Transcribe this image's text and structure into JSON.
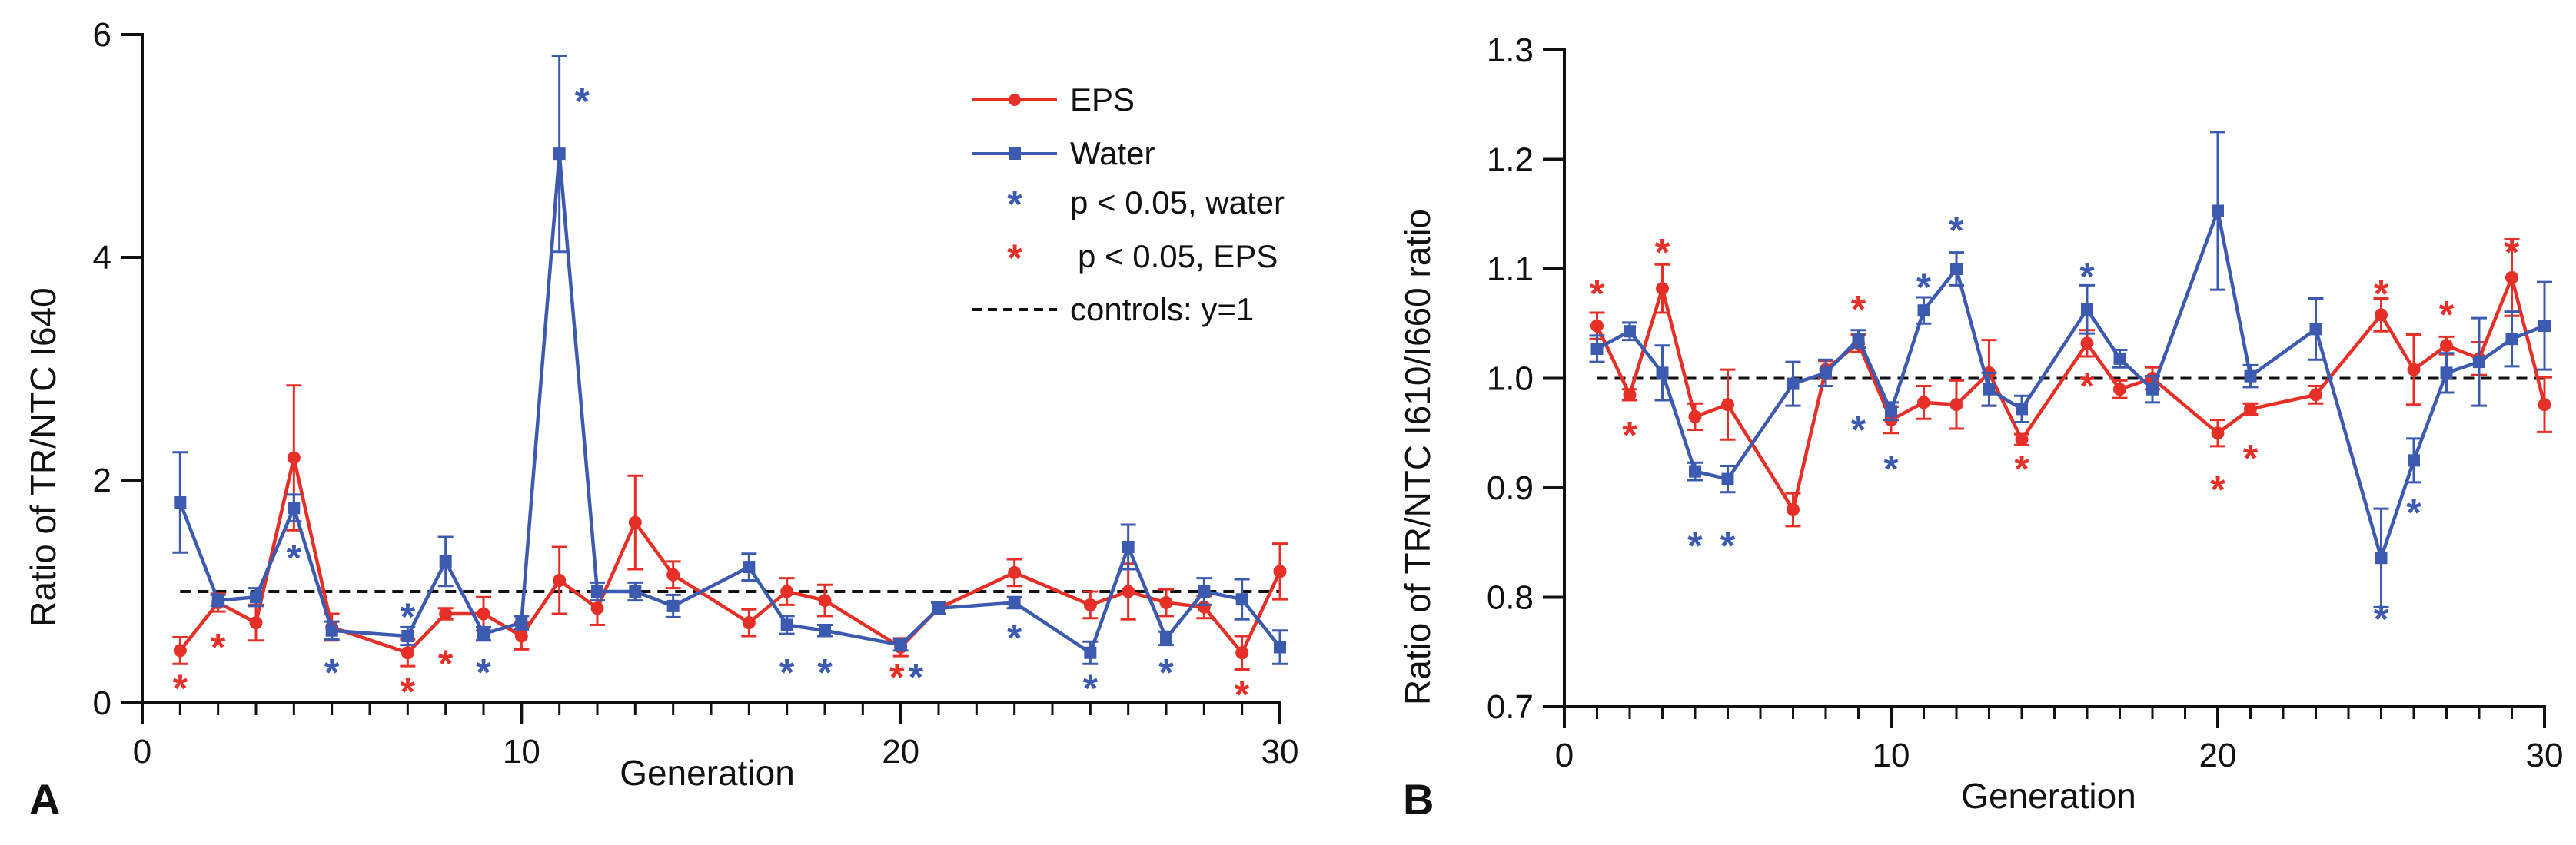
{
  "colors": {
    "eps": "#e63027",
    "water": "#3b5ab0",
    "control": "#111111",
    "axis": "#111111"
  },
  "chart_data": [
    {
      "panel": "A",
      "type": "line",
      "title": "",
      "xlabel": "Generation",
      "ylabel": "Ratio of TR/NTC I640",
      "xlim": [
        0,
        30
      ],
      "ylim": [
        0,
        6
      ],
      "xticks": [
        0,
        10,
        20,
        30
      ],
      "xticks_minor": [
        1,
        2,
        3,
        4,
        5,
        6,
        7,
        8,
        9,
        11,
        12,
        13,
        14,
        15,
        16,
        17,
        18,
        19,
        21,
        22,
        23,
        24,
        25,
        26,
        27,
        28,
        29
      ],
      "yticks": [
        0,
        2,
        4,
        6
      ],
      "yticks_minor": [],
      "control": 1,
      "legend": {
        "position": "top-right",
        "eps": "EPS",
        "water": "Water",
        "sig_water": "p < 0.05, water",
        "sig_eps": "p < 0.05, EPS",
        "control": "controls: y=1"
      },
      "series": [
        {
          "name": "EPS",
          "color": "#e63027",
          "marker": "circle",
          "points": [
            {
              "x": 1,
              "y": 0.47,
              "err": 0.12
            },
            {
              "x": 2,
              "y": 0.9,
              "err": 0.08
            },
            {
              "x": 3,
              "y": 0.72,
              "err": 0.16
            },
            {
              "x": 4,
              "y": 2.2,
              "err": 0.65
            },
            {
              "x": 5,
              "y": 0.68,
              "err": 0.12
            },
            {
              "x": 7,
              "y": 0.45,
              "err": 0.12
            },
            {
              "x": 8,
              "y": 0.8,
              "err": 0.05
            },
            {
              "x": 9,
              "y": 0.8,
              "err": 0.15
            },
            {
              "x": 10,
              "y": 0.6,
              "err": 0.12
            },
            {
              "x": 11,
              "y": 1.1,
              "err": 0.3
            },
            {
              "x": 12,
              "y": 0.85,
              "err": 0.15
            },
            {
              "x": 13,
              "y": 1.62,
              "err": 0.42
            },
            {
              "x": 14,
              "y": 1.15,
              "err": 0.12
            },
            {
              "x": 16,
              "y": 0.72,
              "err": 0.12
            },
            {
              "x": 17,
              "y": 1.0,
              "err": 0.12
            },
            {
              "x": 18,
              "y": 0.92,
              "err": 0.14
            },
            {
              "x": 20,
              "y": 0.5,
              "err": 0.08
            },
            {
              "x": 21,
              "y": 0.85,
              "err": 0.05
            },
            {
              "x": 23,
              "y": 1.17,
              "err": 0.12
            },
            {
              "x": 25,
              "y": 0.88,
              "err": 0.12
            },
            {
              "x": 26,
              "y": 1.0,
              "err": 0.25
            },
            {
              "x": 27,
              "y": 0.9,
              "err": 0.12
            },
            {
              "x": 28,
              "y": 0.86,
              "err": 0.1
            },
            {
              "x": 29,
              "y": 0.45,
              "err": 0.15
            },
            {
              "x": 30,
              "y": 1.18,
              "err": 0.25
            }
          ]
        },
        {
          "name": "Water",
          "color": "#3b5ab0",
          "marker": "square",
          "points": [
            {
              "x": 1,
              "y": 1.8,
              "err": 0.45
            },
            {
              "x": 2,
              "y": 0.92,
              "err": 0.05
            },
            {
              "x": 3,
              "y": 0.95,
              "err": 0.08
            },
            {
              "x": 4,
              "y": 1.75,
              "err": 0.12
            },
            {
              "x": 5,
              "y": 0.65,
              "err": 0.08
            },
            {
              "x": 7,
              "y": 0.6,
              "err": 0.08
            },
            {
              "x": 8,
              "y": 1.27,
              "err": 0.22
            },
            {
              "x": 9,
              "y": 0.62,
              "err": 0.06
            },
            {
              "x": 10,
              "y": 0.72,
              "err": 0.06
            },
            {
              "x": 11,
              "y": 4.93,
              "err": 0.88
            },
            {
              "x": 12,
              "y": 1.0,
              "err": 0.08
            },
            {
              "x": 13,
              "y": 1.0,
              "err": 0.08
            },
            {
              "x": 14,
              "y": 0.87,
              "err": 0.1
            },
            {
              "x": 16,
              "y": 1.22,
              "err": 0.12
            },
            {
              "x": 17,
              "y": 0.7,
              "err": 0.08
            },
            {
              "x": 18,
              "y": 0.65,
              "err": 0.05
            },
            {
              "x": 20,
              "y": 0.52,
              "err": 0.05
            },
            {
              "x": 21,
              "y": 0.85,
              "err": 0.05
            },
            {
              "x": 23,
              "y": 0.9,
              "err": 0.05
            },
            {
              "x": 25,
              "y": 0.45,
              "err": 0.1
            },
            {
              "x": 26,
              "y": 1.4,
              "err": 0.2
            },
            {
              "x": 27,
              "y": 0.58,
              "err": 0.06
            },
            {
              "x": 28,
              "y": 1.0,
              "err": 0.12
            },
            {
              "x": 29,
              "y": 0.93,
              "err": 0.18
            },
            {
              "x": 30,
              "y": 0.5,
              "err": 0.15
            }
          ]
        }
      ],
      "significance": [
        {
          "x": 1,
          "y": 0.18,
          "group": "EPS"
        },
        {
          "x": 2,
          "y": 0.55,
          "group": "EPS"
        },
        {
          "x": 4,
          "y": 1.35,
          "group": "Water"
        },
        {
          "x": 5,
          "y": 0.32,
          "group": "Water"
        },
        {
          "x": 7,
          "y": 0.82,
          "group": "Water"
        },
        {
          "x": 7,
          "y": 0.15,
          "group": "EPS"
        },
        {
          "x": 8,
          "y": 0.4,
          "group": "EPS"
        },
        {
          "x": 9,
          "y": 0.32,
          "group": "Water"
        },
        {
          "x": 11.6,
          "y": 5.45,
          "group": "Water"
        },
        {
          "x": 17,
          "y": 0.32,
          "group": "Water"
        },
        {
          "x": 18,
          "y": 0.32,
          "group": "Water"
        },
        {
          "x": 19.9,
          "y": 0.28,
          "group": "EPS"
        },
        {
          "x": 20.4,
          "y": 0.28,
          "group": "Water"
        },
        {
          "x": 23,
          "y": 0.63,
          "group": "Water"
        },
        {
          "x": 25,
          "y": 0.18,
          "group": "Water"
        },
        {
          "x": 27,
          "y": 0.32,
          "group": "Water"
        },
        {
          "x": 29,
          "y": 0.12,
          "group": "EPS"
        }
      ]
    },
    {
      "panel": "B",
      "type": "line",
      "title": "",
      "xlabel": "Generation",
      "ylabel": "Ratio of TR/NTC I610/I660 ratio",
      "xlim": [
        0,
        30
      ],
      "ylim": [
        0.7,
        1.3
      ],
      "xticks": [
        0,
        10,
        20,
        30
      ],
      "xticks_minor": [
        1,
        2,
        3,
        4,
        5,
        6,
        7,
        8,
        9,
        11,
        12,
        13,
        14,
        15,
        16,
        17,
        18,
        19,
        21,
        22,
        23,
        24,
        25,
        26,
        27,
        28,
        29
      ],
      "yticks": [
        0.7,
        0.8,
        0.9,
        1.0,
        1.1,
        1.2,
        1.3
      ],
      "ytick_labels": [
        "0.7",
        "0.8",
        "0.9",
        "1.0",
        "1.1",
        "1.2",
        "1.3"
      ],
      "yticks_minor": [],
      "control": 1,
      "series": [
        {
          "name": "EPS",
          "color": "#e63027",
          "marker": "circle",
          "points": [
            {
              "x": 1,
              "y": 1.048,
              "err": 0.012
            },
            {
              "x": 2,
              "y": 0.985,
              "err": 0.005
            },
            {
              "x": 3,
              "y": 1.082,
              "err": 0.022
            },
            {
              "x": 4,
              "y": 0.965,
              "err": 0.012
            },
            {
              "x": 5,
              "y": 0.976,
              "err": 0.032
            },
            {
              "x": 7,
              "y": 0.88,
              "err": 0.015
            },
            {
              "x": 8,
              "y": 1.008,
              "err": 0.008
            },
            {
              "x": 9,
              "y": 1.032,
              "err": 0.008
            },
            {
              "x": 10,
              "y": 0.962,
              "err": 0.012
            },
            {
              "x": 11,
              "y": 0.978,
              "err": 0.015
            },
            {
              "x": 12,
              "y": 0.976,
              "err": 0.022
            },
            {
              "x": 13,
              "y": 1.005,
              "err": 0.03
            },
            {
              "x": 14,
              "y": 0.944,
              "err": 0.005
            },
            {
              "x": 16,
              "y": 1.032,
              "err": 0.012
            },
            {
              "x": 17,
              "y": 0.99,
              "err": 0.008
            },
            {
              "x": 18,
              "y": 1.0,
              "err": 0.01
            },
            {
              "x": 20,
              "y": 0.95,
              "err": 0.012
            },
            {
              "x": 21,
              "y": 0.972,
              "err": 0.005
            },
            {
              "x": 23,
              "y": 0.985,
              "err": 0.008
            },
            {
              "x": 25,
              "y": 1.058,
              "err": 0.015
            },
            {
              "x": 26,
              "y": 1.008,
              "err": 0.032
            },
            {
              "x": 27,
              "y": 1.03,
              "err": 0.008
            },
            {
              "x": 28,
              "y": 1.018,
              "err": 0.015
            },
            {
              "x": 29,
              "y": 1.092,
              "err": 0.035
            },
            {
              "x": 30,
              "y": 0.976,
              "err": 0.025
            }
          ]
        },
        {
          "name": "Water",
          "color": "#3b5ab0",
          "marker": "square",
          "points": [
            {
              "x": 1,
              "y": 1.027,
              "err": 0.012
            },
            {
              "x": 2,
              "y": 1.043,
              "err": 0.008
            },
            {
              "x": 3,
              "y": 1.005,
              "err": 0.025
            },
            {
              "x": 4,
              "y": 0.915,
              "err": 0.008
            },
            {
              "x": 5,
              "y": 0.908,
              "err": 0.012
            },
            {
              "x": 7,
              "y": 0.995,
              "err": 0.02
            },
            {
              "x": 8,
              "y": 1.005,
              "err": 0.012
            },
            {
              "x": 9,
              "y": 1.036,
              "err": 0.008
            },
            {
              "x": 10,
              "y": 0.97,
              "err": 0.008
            },
            {
              "x": 11,
              "y": 1.062,
              "err": 0.012
            },
            {
              "x": 12,
              "y": 1.1,
              "err": 0.015
            },
            {
              "x": 13,
              "y": 0.99,
              "err": 0.015
            },
            {
              "x": 14,
              "y": 0.972,
              "err": 0.012
            },
            {
              "x": 16,
              "y": 1.063,
              "err": 0.022
            },
            {
              "x": 17,
              "y": 1.018,
              "err": 0.008
            },
            {
              "x": 18,
              "y": 0.99,
              "err": 0.012
            },
            {
              "x": 20,
              "y": 1.153,
              "err": 0.072
            },
            {
              "x": 21,
              "y": 1.002,
              "err": 0.01
            },
            {
              "x": 23,
              "y": 1.045,
              "err": 0.028
            },
            {
              "x": 25,
              "y": 0.836,
              "err": 0.045
            },
            {
              "x": 26,
              "y": 0.925,
              "err": 0.02
            },
            {
              "x": 27,
              "y": 1.005,
              "err": 0.018
            },
            {
              "x": 28,
              "y": 1.015,
              "err": 0.04
            },
            {
              "x": 29,
              "y": 1.036,
              "err": 0.025
            },
            {
              "x": 30,
              "y": 1.048,
              "err": 0.04
            }
          ]
        }
      ],
      "significance": [
        {
          "x": 1,
          "y": 1.082,
          "group": "EPS"
        },
        {
          "x": 2,
          "y": 0.953,
          "group": "EPS"
        },
        {
          "x": 3,
          "y": 1.12,
          "group": "EPS"
        },
        {
          "x": 4,
          "y": 0.852,
          "group": "Water"
        },
        {
          "x": 5,
          "y": 0.852,
          "group": "Water"
        },
        {
          "x": 9,
          "y": 1.068,
          "group": "EPS"
        },
        {
          "x": 9,
          "y": 0.958,
          "group": "Water"
        },
        {
          "x": 10,
          "y": 0.922,
          "group": "Water"
        },
        {
          "x": 11,
          "y": 1.088,
          "group": "Water"
        },
        {
          "x": 12,
          "y": 1.14,
          "group": "Water"
        },
        {
          "x": 14,
          "y": 0.922,
          "group": "EPS"
        },
        {
          "x": 16,
          "y": 1.098,
          "group": "Water"
        },
        {
          "x": 16,
          "y": 0.998,
          "group": "EPS"
        },
        {
          "x": 20,
          "y": 0.903,
          "group": "EPS"
        },
        {
          "x": 21,
          "y": 0.932,
          "group": "EPS"
        },
        {
          "x": 25,
          "y": 1.082,
          "group": "EPS"
        },
        {
          "x": 25,
          "y": 0.785,
          "group": "Water"
        },
        {
          "x": 26,
          "y": 0.882,
          "group": "Water"
        },
        {
          "x": 27,
          "y": 1.063,
          "group": "EPS"
        },
        {
          "x": 29,
          "y": 1.12,
          "group": "EPS"
        }
      ]
    }
  ]
}
